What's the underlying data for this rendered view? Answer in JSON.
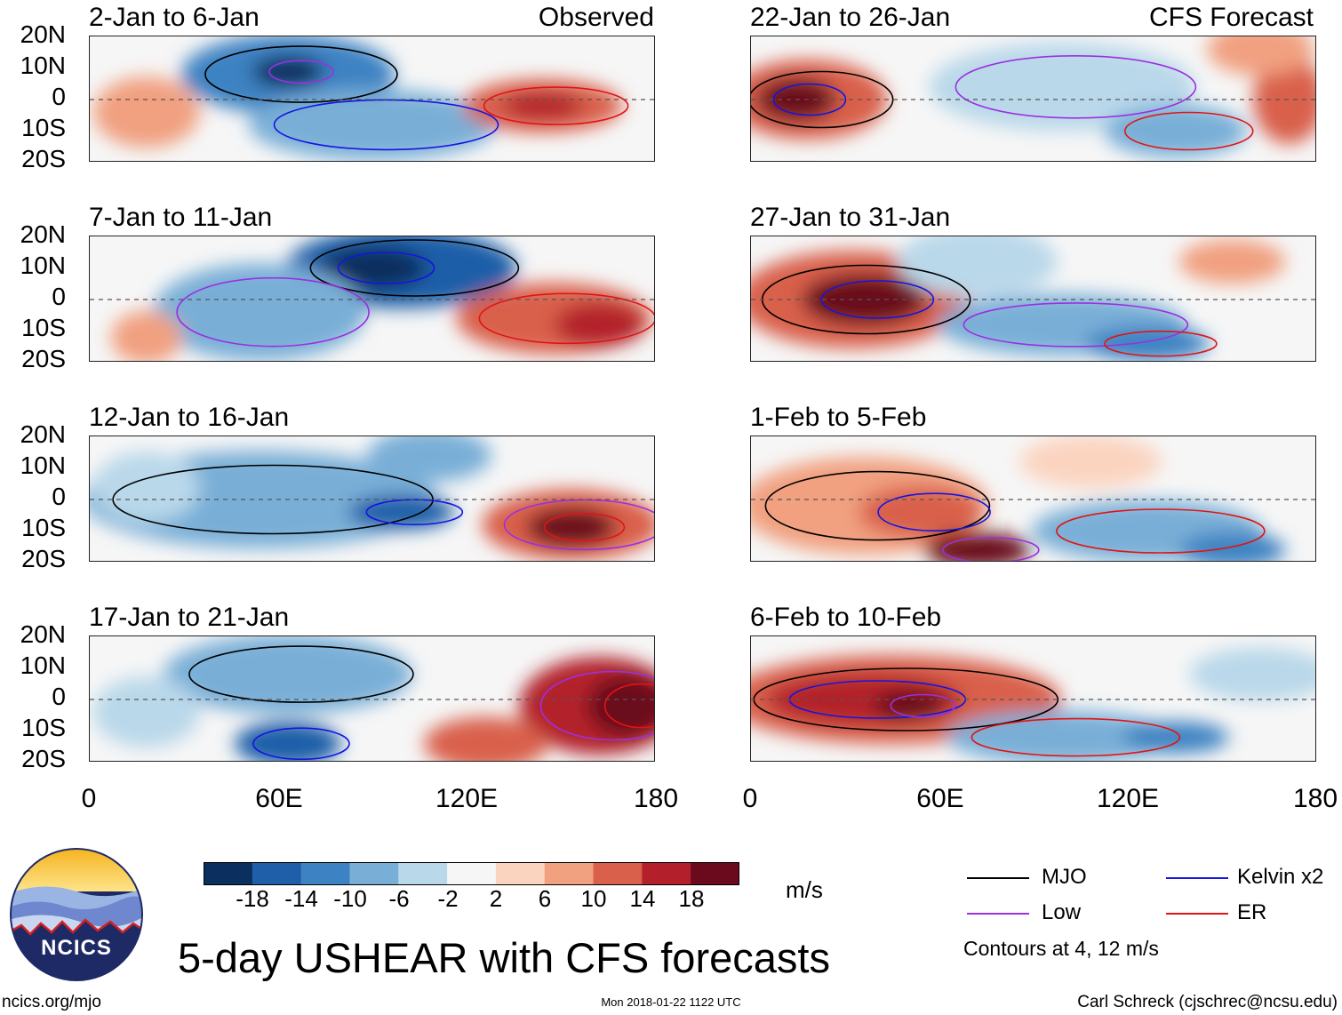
{
  "title": "5-day USHEAR with CFS forecasts",
  "column_labels": {
    "left": "Observed",
    "right": "CFS Forecast"
  },
  "panels": [
    {
      "period": "2-Jan to 6-Jan"
    },
    {
      "period": "22-Jan to 26-Jan"
    },
    {
      "period": "7-Jan to 11-Jan"
    },
    {
      "period": "27-Jan to 31-Jan"
    },
    {
      "period": "12-Jan to 16-Jan"
    },
    {
      "period": "1-Feb to 5-Feb"
    },
    {
      "period": "17-Jan to 21-Jan"
    },
    {
      "period": "6-Feb to 10-Feb"
    }
  ],
  "lat_ticks": [
    "20N",
    "10N",
    "0",
    "10S",
    "20S"
  ],
  "lon_ticks": [
    "0",
    "60E",
    "120E",
    "180"
  ],
  "colorbar": {
    "unit": "m/s",
    "labels": [
      "-18",
      "-14",
      "-10",
      "-6",
      "-2",
      "2",
      "6",
      "10",
      "14",
      "18"
    ],
    "colors": [
      "#0b2f5e",
      "#1f5ea8",
      "#3d82c2",
      "#79afd7",
      "#b9d8ea",
      "#f6f6f6",
      "#fbd4c0",
      "#f1a080",
      "#d9604b",
      "#b3202c",
      "#6b0a1d"
    ]
  },
  "legend": {
    "items": [
      {
        "label": "MJO",
        "color": "#000000"
      },
      {
        "label": "Kelvin x2",
        "color": "#1515e0"
      },
      {
        "label": "Low",
        "color": "#9b30e0"
      },
      {
        "label": "ER",
        "color": "#e01515"
      }
    ],
    "note": "Contours at 4, 12 m/s"
  },
  "logo": {
    "text": "NCICS"
  },
  "footer": {
    "url": "ncics.org/mjo",
    "timestamp": "Mon 2018-01-22 1122 UTC",
    "credit": "Carl Schreck (cjschrec@ncsu.edu)"
  }
}
